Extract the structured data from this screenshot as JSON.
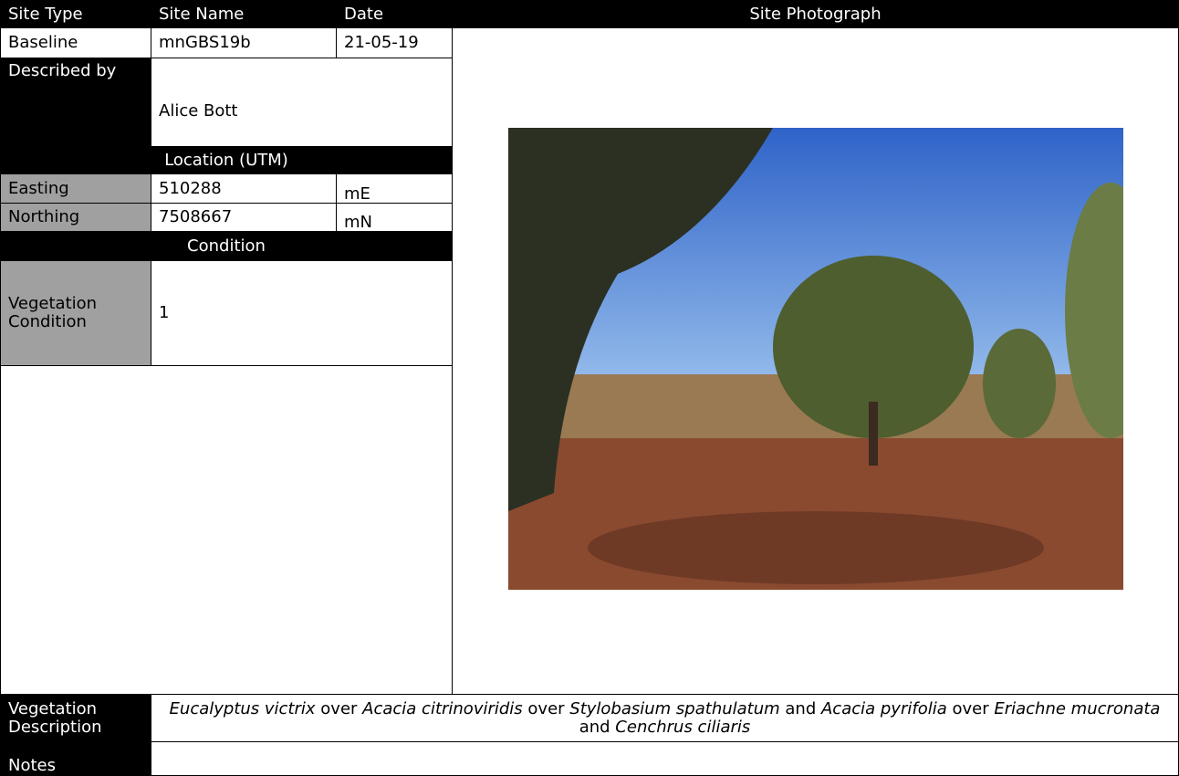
{
  "header": {
    "site_type": "Site Type",
    "site_name": "Site Name",
    "date": "Date",
    "site_photograph": "Site Photograph"
  },
  "site": {
    "site_type": "Baseline",
    "site_name": "mnGBS19b",
    "date": "21-05-19"
  },
  "described_by": {
    "label": "Described by",
    "value": "Alice Bott"
  },
  "location": {
    "title": "Location (UTM)",
    "easting": {
      "label": "Easting",
      "value": "510288",
      "unit": "mE"
    },
    "northing": {
      "label": "Northing",
      "value": "7508667",
      "unit": "mN"
    }
  },
  "condition": {
    "title": "Condition",
    "label": "Vegetation Condition",
    "value": "1"
  },
  "vegetation_description": {
    "label": "Vegetation Description",
    "segments": [
      {
        "text": "Eucalyptus victrix",
        "italic": true
      },
      {
        "text": " over ",
        "italic": false
      },
      {
        "text": "Acacia citrinoviridis",
        "italic": true
      },
      {
        "text": " over ",
        "italic": false
      },
      {
        "text": "Stylobasium spathulatum",
        "italic": true
      },
      {
        "text": " and ",
        "italic": false
      },
      {
        "text": "Acacia pyrifolia",
        "italic": true
      },
      {
        "text": " over ",
        "italic": false
      },
      {
        "text": "Eriachne mucronata",
        "italic": true
      },
      {
        "text": " and ",
        "italic": false
      },
      {
        "text": "Cenchrus ciliaris",
        "italic": true
      }
    ]
  },
  "notes": {
    "label": "Notes"
  }
}
